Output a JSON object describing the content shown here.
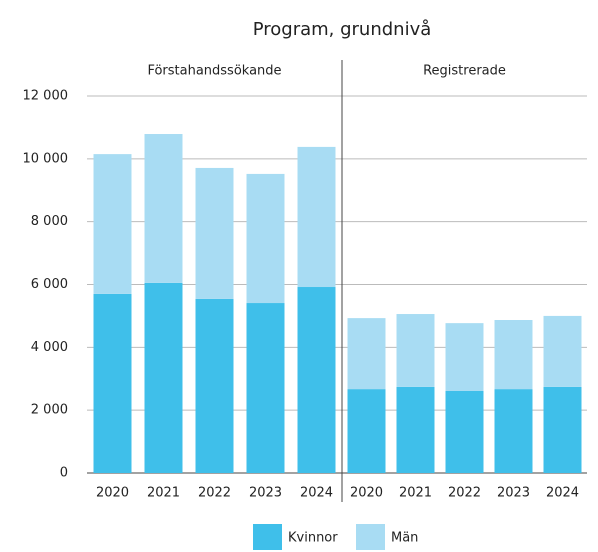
{
  "chart_data": {
    "type": "bar",
    "stacked": true,
    "title": "Program, grundnivå",
    "ylim": [
      0,
      12000
    ],
    "yticks": [
      0,
      {
        "value": 2000,
        "label": "2 000"
      },
      {
        "value": 4000,
        "label": "4 000"
      },
      {
        "value": 6000,
        "label": "6 000"
      },
      {
        "value": 8000,
        "label": "8 000"
      },
      {
        "value": 10000,
        "label": "10 000"
      },
      {
        "value": 12000,
        "label": "12 000"
      }
    ],
    "grid": true,
    "legend": "bottom",
    "panels": [
      {
        "title": "Förstahandssökande",
        "categories": [
          "2020",
          "2021",
          "2022",
          "2023",
          "2024"
        ],
        "series": [
          {
            "name": "Kvinnor",
            "color": "#3fbfea",
            "values": [
              5700,
              6050,
              5540,
              5410,
              5920
            ]
          },
          {
            "name": "Män",
            "color": "#a8dcf3",
            "values": [
              4450,
              4740,
              4170,
              4110,
              4460
            ]
          }
        ]
      },
      {
        "title": "Registrerade",
        "categories": [
          "2020",
          "2021",
          "2022",
          "2023",
          "2024"
        ],
        "series": [
          {
            "name": "Kvinnor",
            "color": "#3fbfea",
            "values": [
              2670,
              2740,
              2610,
              2670,
              2740
            ]
          },
          {
            "name": "Män",
            "color": "#a8dcf3",
            "values": [
              2260,
              2320,
              2160,
              2200,
              2260
            ]
          }
        ]
      }
    ]
  }
}
